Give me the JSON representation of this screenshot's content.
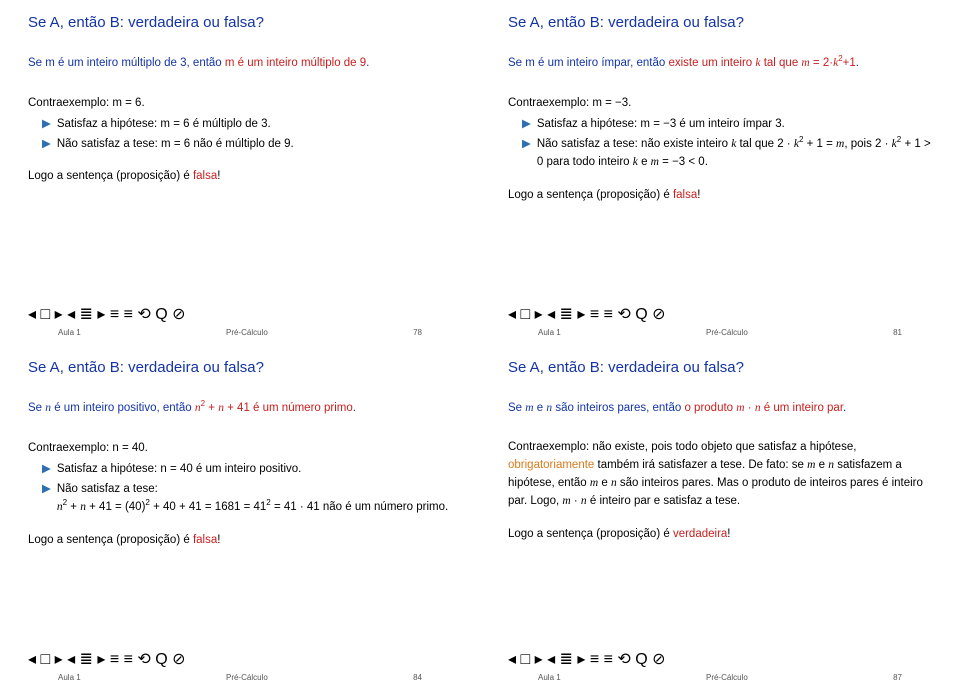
{
  "slides": [
    {
      "title": "Se A, então B: verdadeira ou falsa?",
      "stmt_plain": "Se ",
      "stmt_blue1": "m é um inteiro múltiplo de 3",
      "stmt_mid": ", então ",
      "stmt_red": "m é um inteiro múltiplo de 9",
      "stmt_end": ".",
      "ex_label": "Contraexemplo: m = 6.",
      "item1": "Satisfaz a hipótese: m = 6 é múltiplo de 3.",
      "item2": "Não satisfaz a tese: m = 6 não é múltiplo de 9.",
      "conc_pre": "Logo a sentença (proposição) é ",
      "conc_word": "falsa",
      "conc_post": "!",
      "foot_left": "Aula 1",
      "foot_mid": "Pré-Cálculo",
      "foot_page": "78"
    },
    {
      "title": "Se A, então B: verdadeira ou falsa?",
      "stmt_blue1": "Se m é um inteiro ímpar",
      "stmt_mid": ", então ",
      "stmt_red_html": "existe um inteiro <i>k</i> tal que <i>m</i> = 2·<i>k</i><sup>2</sup>+1",
      "stmt_end": ".",
      "ex_label": "Contraexemplo: m = −3.",
      "item1": "Satisfaz a hipótese: m = −3 é um inteiro ímpar 3.",
      "item2_html": "Não satisfaz a tese: não existe inteiro <i>k</i> tal que 2 · <i>k</i><sup>2</sup> + 1 = <i>m</i>, pois 2 · <i>k</i><sup>2</sup> + 1 &gt; 0 para todo inteiro <i>k</i> e <i>m</i> = −3 &lt; 0.",
      "conc_pre": "Logo a sentença (proposição) é ",
      "conc_word": "falsa",
      "conc_post": "!",
      "foot_left": "Aula 1",
      "foot_mid": "Pré-Cálculo",
      "foot_page": "81"
    },
    {
      "title": "Se A, então B: verdadeira ou falsa?",
      "stmt_blue1_html": "Se <i>n</i> é um inteiro positivo",
      "stmt_mid": ", então ",
      "stmt_red_html": "<i>n</i><sup>2</sup> + <i>n</i> + 41 é um número primo",
      "stmt_end": ".",
      "ex_label": "Contraexemplo: n = 40.",
      "item1": "Satisfaz a hipótese: n = 40 é um inteiro positivo.",
      "item2_html": "Não satisfaz a tese:<br><i>n</i><sup>2</sup> + <i>n</i> + 41 = (40)<sup>2</sup> + 40 + 41 = 1681 = 41<sup>2</sup> = 41 · 41 não é um número primo.",
      "conc_pre": "Logo a sentença (proposição) é ",
      "conc_word": "falsa",
      "conc_post": "!",
      "foot_left": "Aula 1",
      "foot_mid": "Pré-Cálculo",
      "foot_page": "84"
    },
    {
      "title": "Se A, então B: verdadeira ou falsa?",
      "stmt_blue1_html": "Se <i>m</i> e <i>n</i> são inteiros pares",
      "stmt_mid": ", então ",
      "stmt_red_html": "o produto <i>m</i> · <i>n</i> é um inteiro par",
      "stmt_end": ".",
      "ex_html": "Contraexemplo: não existe, pois todo objeto que satisfaz a hipótese, <span style='color:#d87a1a'>obrigatoriamente</span> também irá satisfazer a tese. De fato: se <i>m</i> e <i>n</i> satisfazem a hipótese, então <i>m</i> e <i>n</i> são inteiros pares. Mas o produto de inteiros pares é inteiro par. Logo, <i>m</i> · <i>n</i> é inteiro par e satisfaz a tese.",
      "conc_pre": "Logo a sentença (proposição) é ",
      "conc_word": "verdadeira",
      "conc_post": "!",
      "foot_left": "Aula 1",
      "foot_mid": "Pré-Cálculo",
      "foot_page": "87"
    }
  ],
  "nav_symbols": "◂ □ ▸ ◂ ≣ ▸   ≡   ≡   ⟲ Q ⊘"
}
